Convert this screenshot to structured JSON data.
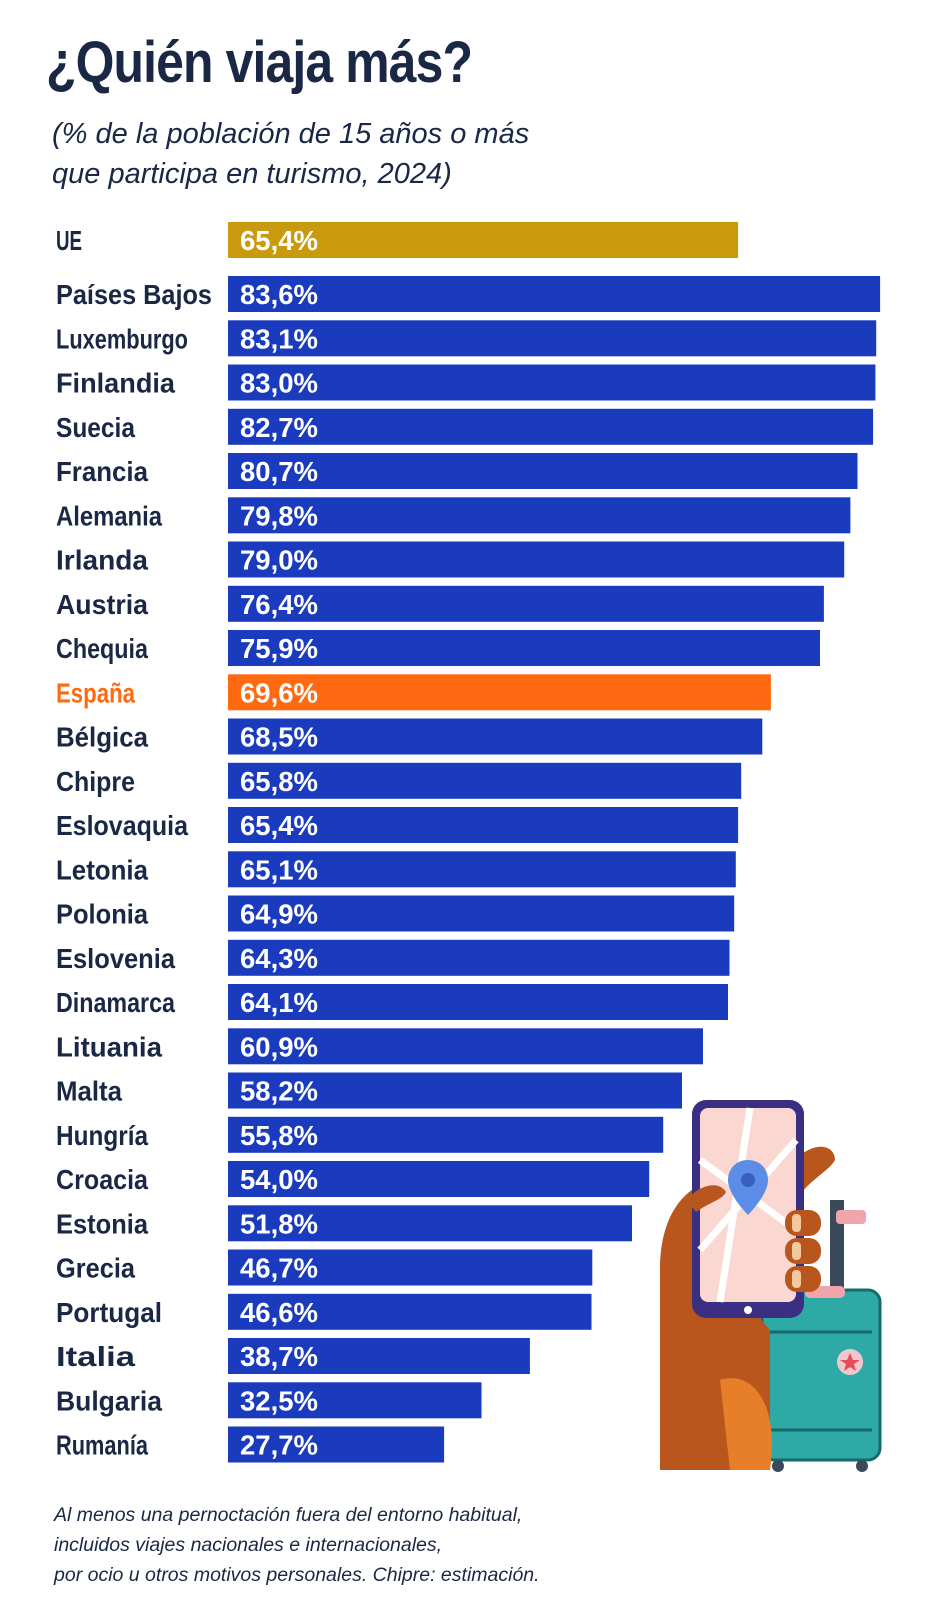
{
  "title": "¿Quién viaja más?",
  "subtitle_line1": "(% de la población de 15 años o más",
  "subtitle_line2": "que participa en turismo, 2024)",
  "note_line1": "Al menos una pernoctación fuera del entorno habitual,",
  "note_line2": "incluidos viajes nacionales e internacionales,",
  "note_line3": "por ocio u otros motivos personales. Chipre: estimación.",
  "illustration_icon": "hand-phone-map-pin-suitcase-icon",
  "colors": {
    "default_bar": "#1a3bbd",
    "eu_bar": "#c99a0e",
    "spain_bar": "#ff6a10",
    "default_label": "#1a2745",
    "spain_label": "#ff6a10"
  },
  "chart_data": {
    "type": "bar",
    "orientation": "horizontal",
    "title": "¿Quién viaja más?",
    "unit": "%",
    "categories": [
      "UE",
      "Países Bajos",
      "Luxemburgo",
      "Finlandia",
      "Suecia",
      "Francia",
      "Alemania",
      "Irlanda",
      "Austria",
      "Chequia",
      "España",
      "Bélgica",
      "Chipre",
      "Eslovaquia",
      "Letonia",
      "Polonia",
      "Eslovenia",
      "Dinamarca",
      "Lituania",
      "Malta",
      "Hungría",
      "Croacia",
      "Estonia",
      "Grecia",
      "Portugal",
      "Italia",
      "Bulgaria",
      "Rumanía"
    ],
    "values": [
      65.4,
      83.6,
      83.1,
      83.0,
      82.7,
      80.7,
      79.8,
      79.0,
      76.4,
      75.9,
      69.6,
      68.5,
      65.8,
      65.4,
      65.1,
      64.9,
      64.3,
      64.1,
      60.9,
      58.2,
      55.8,
      54.0,
      51.8,
      46.7,
      46.6,
      38.7,
      32.5,
      27.7
    ],
    "value_labels": [
      "65,4%",
      "83,6%",
      "83,1%",
      "83,0%",
      "82,7%",
      "80,7%",
      "79,8%",
      "79,0%",
      "76,4%",
      "75,9%",
      "69,6%",
      "68,5%",
      "65,8%",
      "65,4%",
      "65,1%",
      "64,9%",
      "64,3%",
      "64,1%",
      "60,9%",
      "58,2%",
      "55,8%",
      "54,0%",
      "51,8%",
      "46,7%",
      "46,6%",
      "38,7%",
      "32,5%",
      "27,7%"
    ],
    "highlight": {
      "UE": "eu_bar",
      "España": "spain_bar"
    },
    "grid": false,
    "legend": "none"
  }
}
